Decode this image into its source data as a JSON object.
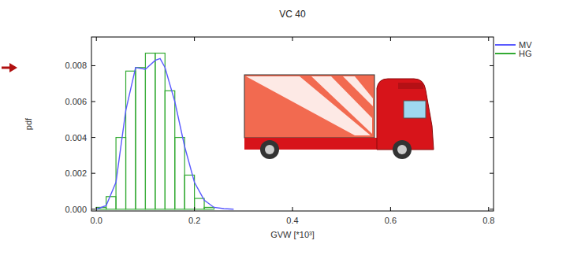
{
  "chart_data": {
    "type": "histogram",
    "title": "VC 40",
    "x_label": "GVW [*10³]",
    "y_label": "pdf",
    "xlim": [
      -0.01,
      0.81
    ],
    "ylim": [
      -0.0001,
      0.0096
    ],
    "xticks": [
      {
        "value": 0,
        "label": "0.0"
      },
      {
        "value": 0.2,
        "label": "0.2"
      },
      {
        "value": 0.4,
        "label": "0.4"
      },
      {
        "value": 0.6,
        "label": "0.6"
      },
      {
        "value": 0.8,
        "label": "0.8"
      }
    ],
    "yticks": [
      {
        "value": 0,
        "label": "0.000"
      },
      {
        "value": 0.002,
        "label": "0.002"
      },
      {
        "value": 0.004,
        "label": "0.004"
      },
      {
        "value": 0.006,
        "label": "0.006"
      },
      {
        "value": 0.008,
        "label": "0.008"
      }
    ],
    "grid": false,
    "legend": "right",
    "series": [
      {
        "name": "MV",
        "type": "line",
        "color": "#5a5aff",
        "x": [
          0.0,
          0.02,
          0.04,
          0.06,
          0.08,
          0.1,
          0.12,
          0.13,
          0.14,
          0.16,
          0.18,
          0.2,
          0.22,
          0.24,
          0.26,
          0.28
        ],
        "values": [
          0.0,
          0.0002,
          0.0015,
          0.0055,
          0.0079,
          0.0078,
          0.0083,
          0.0084,
          0.0079,
          0.006,
          0.0035,
          0.0015,
          0.0005,
          0.0001,
          3e-05,
          0.0
        ]
      },
      {
        "name": "HG",
        "type": "bar",
        "color": "#33aa33",
        "bins": [
          0.0,
          0.02,
          0.04,
          0.06,
          0.08,
          0.1,
          0.12,
          0.14,
          0.16,
          0.18,
          0.2,
          0.22,
          0.24
        ],
        "values": [
          0.0001,
          0.0007,
          0.004,
          0.0077,
          0.0079,
          0.0087,
          0.0087,
          0.0066,
          0.004,
          0.0019,
          0.0006,
          0.0001
        ]
      }
    ]
  }
}
